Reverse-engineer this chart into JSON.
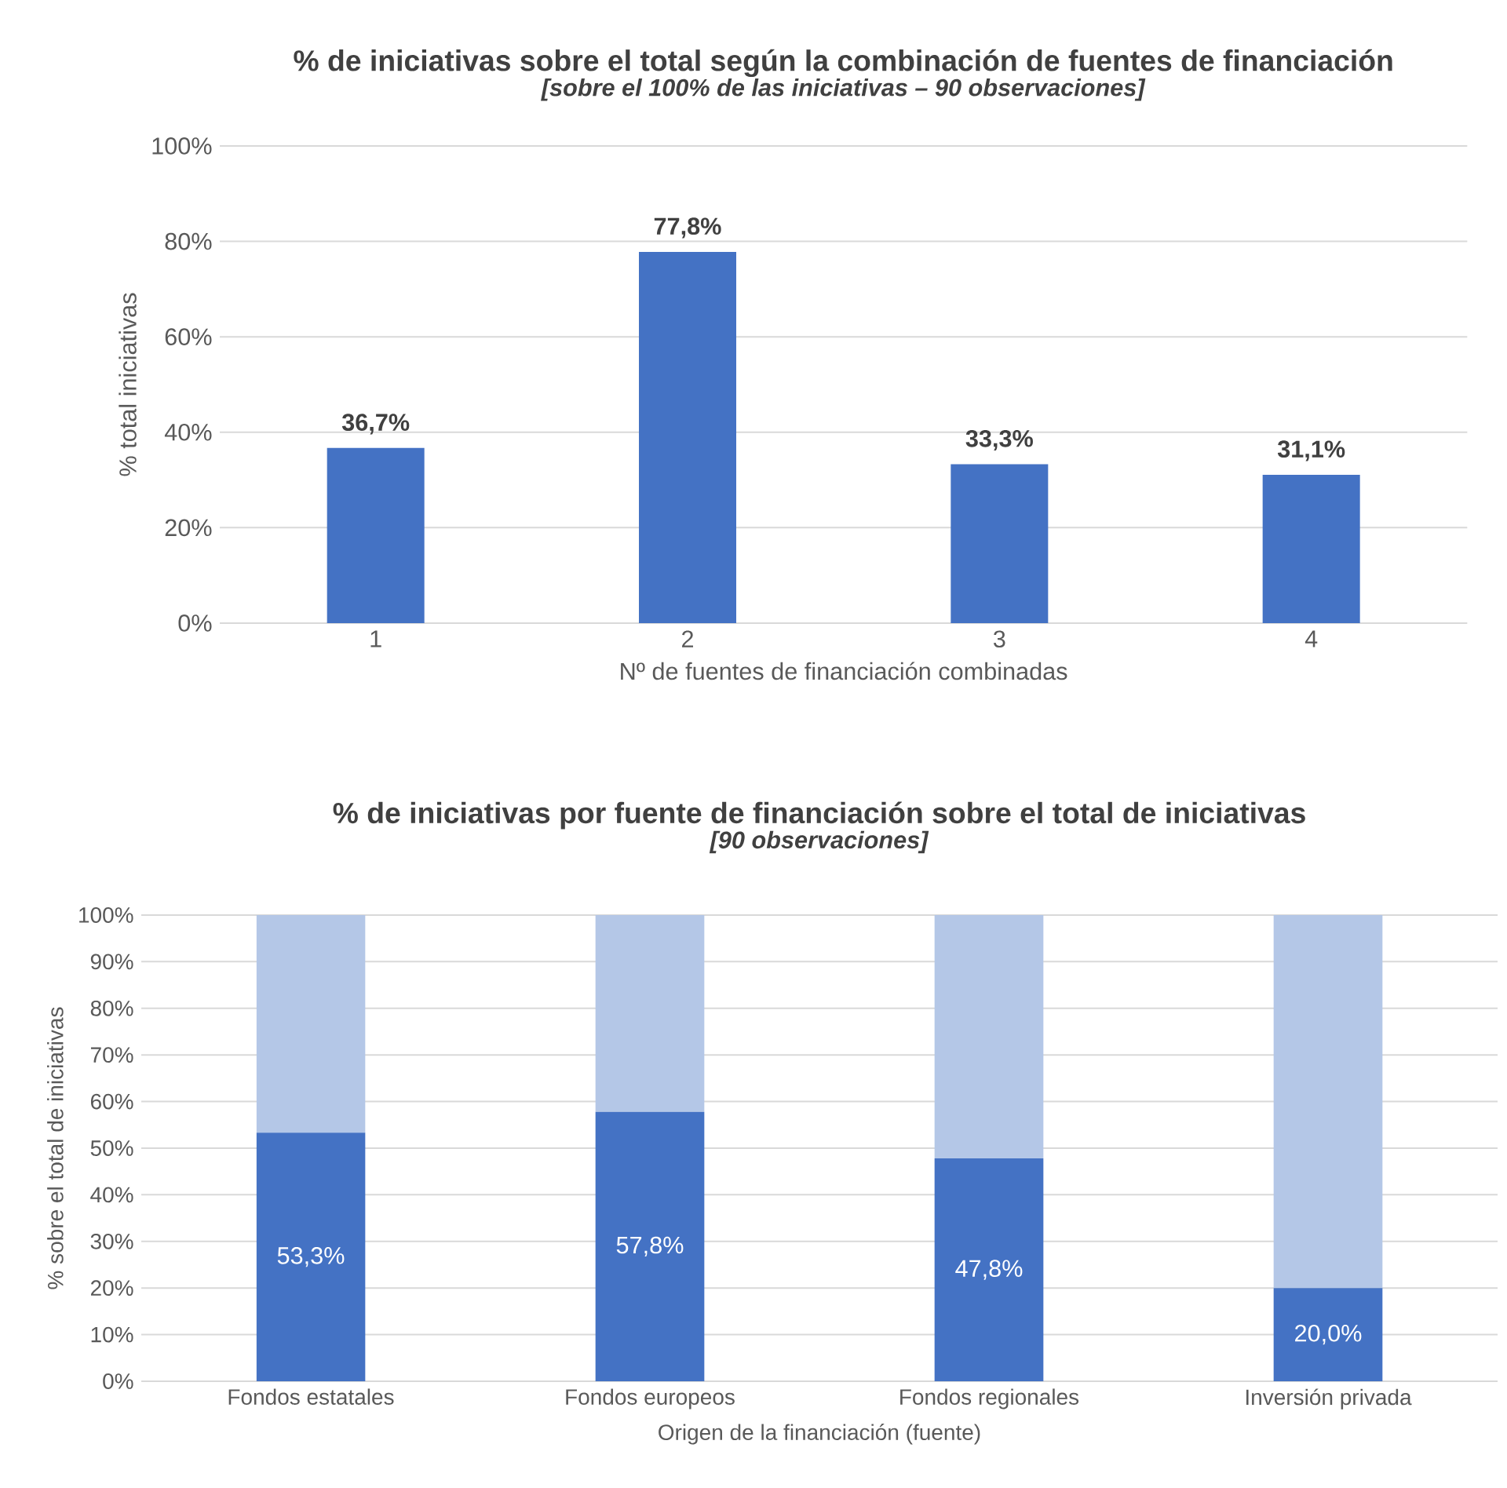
{
  "chart_data": [
    {
      "type": "bar",
      "title": "% de iniciativas sobre el total según la combinación de fuentes de financiación",
      "subtitle": "*[sobre el 100% de las iniciativas – 90 observaciones]*",
      "xlabel": "Nº de fuentes de financiación combinadas",
      "ylabel": "% total iniciativas",
      "categories": [
        "1",
        "2",
        "3",
        "4"
      ],
      "series": [
        {
          "color": "#4472c4",
          "values": [
            36.7,
            77.8,
            33.3,
            31.1
          ],
          "value_labels": [
            "36,7%",
            "77,8%",
            "33,3%",
            "31,1%"
          ]
        }
      ],
      "ylim": [
        0,
        100
      ],
      "yticks": [
        {
          "value": 0,
          "label": "0%"
        },
        {
          "value": 20,
          "label": "20%"
        },
        {
          "value": 40,
          "label": "40%"
        },
        {
          "value": 60,
          "label": "60%"
        },
        {
          "value": 80,
          "label": "80%"
        },
        {
          "value": 100,
          "label": "100%"
        }
      ],
      "grid": "y"
    },
    {
      "type": "bar",
      "stacked": true,
      "title": "% de iniciativas por fuente de financiación sobre el total de iniciativas",
      "subtitle": "*[90 observaciones]*",
      "xlabel": "Origen de la financiación (fuente)",
      "ylabel": "% sobre el total de iniciativas",
      "categories": [
        "Fondos estatales",
        "Fondos europeos",
        "Fondos regionales",
        "Inversión privada"
      ],
      "series": [
        {
          "color": "#4472c4",
          "values": [
            53.3,
            57.8,
            47.8,
            20.0
          ],
          "value_labels": [
            "53,3%",
            "57,8%",
            "47,8%",
            "20,0%"
          ]
        },
        {
          "color": "#b4c7e7",
          "values": [
            46.7,
            42.2,
            52.2,
            80.0
          ]
        }
      ],
      "ylim": [
        0,
        100
      ],
      "yticks": [
        {
          "value": 0,
          "label": "0%"
        },
        {
          "value": 10,
          "label": "10%"
        },
        {
          "value": 20,
          "label": "20%"
        },
        {
          "value": 30,
          "label": "30%"
        },
        {
          "value": 40,
          "label": "40%"
        },
        {
          "value": 50,
          "label": "50%"
        },
        {
          "value": 60,
          "label": "60%"
        },
        {
          "value": 70,
          "label": "70%"
        },
        {
          "value": 80,
          "label": "80%"
        },
        {
          "value": 90,
          "label": "90%"
        },
        {
          "value": 100,
          "label": "100%"
        }
      ],
      "grid": "y"
    }
  ]
}
